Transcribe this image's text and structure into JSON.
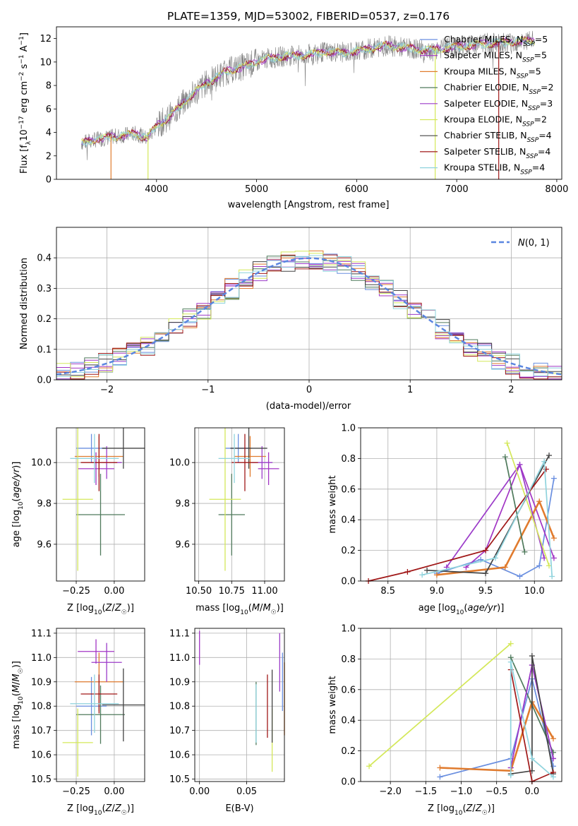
{
  "title": "PLATE=1359, MJD=53002, FIBERID=0537, z=0.176",
  "chart_data": [
    {
      "id": "spectrum",
      "type": "line",
      "xlabel": "wavelength [Angstrom, rest frame]",
      "ylabel": "Flux [f_λ 10^-17 erg cm^-2 s^-1 A^-1]",
      "xlim": [
        3000,
        8050
      ],
      "ylim": [
        0,
        13
      ],
      "xticks": [
        4000,
        5000,
        6000,
        7000,
        8000
      ],
      "yticks": [
        0,
        2,
        4,
        6,
        8,
        10,
        12
      ],
      "grid": false,
      "legend_position": "top-right",
      "data_profile": {
        "x": [
          3250,
          3400,
          3550,
          3700,
          3800,
          3900,
          4000,
          4150,
          4300,
          4500,
          4700,
          4900,
          5100,
          5300,
          5500,
          5700,
          5900,
          6100,
          6300,
          6500,
          6700,
          6900,
          7100,
          7300,
          7500,
          7700
        ],
        "y": [
          3.1,
          3.4,
          3.6,
          3.8,
          3.9,
          3.5,
          4.5,
          5.5,
          6.8,
          8.2,
          9.2,
          9.7,
          10.3,
          10.5,
          10.6,
          10.9,
          10.8,
          11.1,
          11.4,
          11.2,
          11.0,
          11.2,
          11.4,
          11.6,
          11.7,
          11.8
        ]
      },
      "series": [
        {
          "name": "Chabrier MILES, N_SSP=5",
          "color": "#6a8fe0"
        },
        {
          "name": "Salpeter MILES, N_SSP=5",
          "color": "#a235c4"
        },
        {
          "name": "Kroupa MILES, N_SSP=5",
          "color": "#e07b2e"
        },
        {
          "name": "Chabrier ELODIE, N_SSP=2",
          "color": "#4f7a5c"
        },
        {
          "name": "Salpeter ELODIE, N_SSP=3",
          "color": "#9b3bc9"
        },
        {
          "name": "Kroupa ELODIE, N_SSP=2",
          "color": "#d4e85a"
        },
        {
          "name": "Chabrier STELIB, N_SSP=4",
          "color": "#444444"
        },
        {
          "name": "Salpeter STELIB, N_SSP=4",
          "color": "#a01818"
        },
        {
          "name": "Kroupa STELIB, N_SSP=4",
          "color": "#8fd3dd"
        }
      ]
    },
    {
      "id": "residuals",
      "type": "bar",
      "xlabel": "(data-model)/error",
      "ylabel": "Normed distribution",
      "xlim": [
        -2.5,
        2.5
      ],
      "ylim": [
        0,
        0.5
      ],
      "xticks": [
        -2,
        -1,
        0,
        1,
        2
      ],
      "yticks": [
        0.0,
        0.1,
        0.2,
        0.3,
        0.4
      ],
      "grid": true,
      "legend_position": "top-right",
      "legend": "N(0,1)",
      "gaussian_color": "#5b86e0"
    },
    {
      "id": "age-vs-z",
      "type": "scatter",
      "xlabel": "Z [log10(Z/Z☉)]",
      "ylabel": "age  [log10(age/yr)]",
      "xlim": [
        -0.38,
        0.2
      ],
      "ylim": [
        9.42,
        10.17
      ],
      "xticks": [
        -0.25,
        0.0
      ],
      "yticks": [
        9.6,
        9.8,
        10.0
      ],
      "grid": true,
      "points": [
        {
          "x": -0.15,
          "y": 10.07,
          "xerr": 0.1,
          "yerr": 0.07,
          "series": 0
        },
        {
          "x": -0.12,
          "y": 9.97,
          "xerr": 0.12,
          "yerr": 0.08,
          "series": 1
        },
        {
          "x": -0.1,
          "y": 10.03,
          "xerr": 0.16,
          "yerr": 0.1,
          "series": 2
        },
        {
          "x": -0.09,
          "y": 9.745,
          "xerr": 0.16,
          "yerr": 0.2,
          "series": 3
        },
        {
          "x": -0.05,
          "y": 10.0,
          "xerr": 0.1,
          "yerr": 0.08,
          "series": 4
        },
        {
          "x": -0.24,
          "y": 9.82,
          "xerr": 0.1,
          "yerr": 0.35,
          "series": 5
        },
        {
          "x": 0.06,
          "y": 10.07,
          "xerr": 0.14,
          "yerr": 0.1,
          "series": 6
        },
        {
          "x": -0.1,
          "y": 10.0,
          "xerr": 0.12,
          "yerr": 0.14,
          "series": 7
        },
        {
          "x": -0.13,
          "y": 10.02,
          "xerr": 0.16,
          "yerr": 0.12,
          "series": 8
        }
      ]
    },
    {
      "id": "age-vs-mass",
      "type": "scatter",
      "xlabel": "mass [log10(M/M☉)]",
      "ylabel": "",
      "xlim": [
        10.47,
        11.15
      ],
      "ylim": [
        9.42,
        10.17
      ],
      "xticks": [
        10.5,
        10.75,
        11.0
      ],
      "yticks": [
        9.6,
        9.8,
        10.0
      ],
      "grid": true,
      "points": [
        {
          "x": 10.8,
          "y": 10.07,
          "xerr": 0.1,
          "yerr": 0.07,
          "series": 0
        },
        {
          "x": 11.03,
          "y": 9.97,
          "xerr": 0.08,
          "yerr": 0.08,
          "series": 1
        },
        {
          "x": 10.89,
          "y": 10.03,
          "xerr": 0.12,
          "yerr": 0.1,
          "series": 2
        },
        {
          "x": 10.75,
          "y": 9.745,
          "xerr": 0.1,
          "yerr": 0.2,
          "series": 3
        },
        {
          "x": 10.98,
          "y": 10.0,
          "xerr": 0.08,
          "yerr": 0.08,
          "series": 4
        },
        {
          "x": 10.7,
          "y": 9.82,
          "xerr": 0.12,
          "yerr": 0.35,
          "series": 5
        },
        {
          "x": 10.88,
          "y": 10.07,
          "xerr": 0.14,
          "yerr": 0.1,
          "series": 6
        },
        {
          "x": 10.85,
          "y": 10.0,
          "xerr": 0.1,
          "yerr": 0.14,
          "series": 7
        },
        {
          "x": 10.77,
          "y": 10.02,
          "xerr": 0.12,
          "yerr": 0.12,
          "series": 8
        }
      ]
    },
    {
      "id": "weight-vs-age",
      "type": "line",
      "xlabel": "age  [log10(age/yr)]",
      "ylabel": "mass weight",
      "xlim": [
        8.22,
        10.28
      ],
      "ylim": [
        0,
        1
      ],
      "xticks": [
        8.5,
        9.0,
        9.5,
        10.0
      ],
      "yticks": [
        0.0,
        0.2,
        0.4,
        0.6,
        0.8,
        1.0
      ],
      "grid": true,
      "lines": [
        {
          "series": 0,
          "x": [
            9.0,
            9.45,
            9.85,
            10.05,
            10.2
          ],
          "y": [
            0.05,
            0.14,
            0.03,
            0.1,
            0.67
          ]
        },
        {
          "series": 1,
          "x": [
            9.3,
            9.5,
            9.85,
            10.2
          ],
          "y": [
            0.09,
            0.2,
            0.76,
            0.15
          ]
        },
        {
          "series": 2,
          "x": [
            9.0,
            9.7,
            10.05,
            10.2
          ],
          "y": [
            0.04,
            0.09,
            0.52,
            0.28
          ]
        },
        {
          "series": 3,
          "x": [
            9.7,
            9.9
          ],
          "y": [
            0.81,
            0.19
          ]
        },
        {
          "series": 4,
          "x": [
            9.1,
            9.85,
            10.1
          ],
          "y": [
            0.09,
            0.76,
            0.15
          ]
        },
        {
          "series": 5,
          "x": [
            9.72,
            10.15
          ],
          "y": [
            0.9,
            0.1
          ]
        },
        {
          "series": 6,
          "x": [
            8.9,
            9.5,
            10.15
          ],
          "y": [
            0.07,
            0.05,
            0.82
          ]
        },
        {
          "series": 7,
          "x": [
            8.3,
            8.7,
            9.5,
            10.12
          ],
          "y": [
            0.0,
            0.06,
            0.2,
            0.73
          ]
        },
        {
          "series": 8,
          "x": [
            8.85,
            9.6,
            10.1,
            10.18
          ],
          "y": [
            0.04,
            0.15,
            0.78,
            0.03
          ]
        }
      ]
    },
    {
      "id": "mass-vs-z",
      "type": "scatter",
      "xlabel": "Z [log10(Z/Z☉)]",
      "ylabel": "mass [log10(M/M☉)]",
      "xlim": [
        -0.38,
        0.2
      ],
      "ylim": [
        10.49,
        11.12
      ],
      "xticks": [
        -0.25,
        0.0
      ],
      "yticks": [
        10.5,
        10.6,
        10.7,
        10.8,
        10.9,
        11.0,
        11.1
      ],
      "grid": true,
      "points": [
        {
          "x": -0.15,
          "y": 10.8,
          "xerr": 0.1,
          "yerr": 0.12,
          "series": 0
        },
        {
          "x": -0.12,
          "y": 11.025,
          "xerr": 0.12,
          "yerr": 0.05,
          "series": 1
        },
        {
          "x": -0.1,
          "y": 10.9,
          "xerr": 0.16,
          "yerr": 0.12,
          "series": 2
        },
        {
          "x": -0.09,
          "y": 10.765,
          "xerr": 0.16,
          "yerr": 0.12,
          "series": 3
        },
        {
          "x": -0.05,
          "y": 10.98,
          "xerr": 0.1,
          "yerr": 0.08,
          "series": 4
        },
        {
          "x": -0.24,
          "y": 10.65,
          "xerr": 0.1,
          "yerr": 0.14,
          "series": 5
        },
        {
          "x": 0.06,
          "y": 10.805,
          "xerr": 0.14,
          "yerr": 0.15,
          "series": 6
        },
        {
          "x": -0.1,
          "y": 10.85,
          "xerr": 0.12,
          "yerr": 0.08,
          "series": 7
        },
        {
          "x": -0.13,
          "y": 10.81,
          "xerr": 0.16,
          "yerr": 0.12,
          "series": 8
        }
      ]
    },
    {
      "id": "mass-vs-ebv",
      "type": "scatter",
      "xlabel": "E(B-V)",
      "ylabel": "",
      "xlim": [
        -0.005,
        0.09
      ],
      "ylim": [
        10.49,
        11.12
      ],
      "xticks": [
        0.0,
        0.05
      ],
      "yticks": [
        10.5,
        10.6,
        10.7,
        10.8,
        10.9,
        11.0,
        11.1
      ],
      "grid": true,
      "points": [
        {
          "x": 0.088,
          "y": 10.9,
          "yerr": 0.12,
          "series": 0
        },
        {
          "x": 0.0,
          "y": 11.04,
          "yerr": 0.07,
          "series": 1
        },
        {
          "x": 0.09,
          "y": 10.83,
          "yerr": 0.15,
          "series": 2
        },
        {
          "x": 0.06,
          "y": 10.77,
          "yerr": 0.13,
          "series": 3
        },
        {
          "x": 0.085,
          "y": 10.98,
          "yerr": 0.12,
          "series": 4
        },
        {
          "x": 0.077,
          "y": 10.66,
          "yerr": 0.13,
          "series": 5
        },
        {
          "x": 0.077,
          "y": 10.8,
          "yerr": 0.15,
          "series": 6
        },
        {
          "x": 0.072,
          "y": 10.8,
          "yerr": 0.13,
          "series": 7
        },
        {
          "x": 0.06,
          "y": 10.77,
          "yerr": 0.12,
          "series": 8
        }
      ]
    },
    {
      "id": "weight-vs-z",
      "type": "line",
      "xlabel": "Z [log10(Z/Z☉)]",
      "ylabel": "mass weight",
      "xlim": [
        -2.42,
        0.42
      ],
      "ylim": [
        0,
        1
      ],
      "xticks": [
        -2.0,
        -1.5,
        -1.0,
        -0.5,
        0.0
      ],
      "yticks": [
        0.0,
        0.2,
        0.4,
        0.6,
        0.8,
        1.0
      ],
      "grid": true,
      "lines": [
        {
          "series": 0,
          "x": [
            -1.3,
            -0.3,
            0.0,
            0.3
          ],
          "y": [
            0.03,
            0.15,
            0.67,
            0.1
          ]
        },
        {
          "series": 1,
          "x": [
            -0.3,
            0.0,
            0.3
          ],
          "y": [
            0.09,
            0.76,
            0.15
          ]
        },
        {
          "series": 2,
          "x": [
            -1.3,
            -0.3,
            0.0,
            0.3
          ],
          "y": [
            0.09,
            0.07,
            0.52,
            0.28
          ]
        },
        {
          "series": 3,
          "x": [
            -0.3,
            0.3
          ],
          "y": [
            0.81,
            0.19
          ]
        },
        {
          "series": 4,
          "x": [
            -0.3,
            0.0,
            0.3
          ],
          "y": [
            0.09,
            0.76,
            0.15
          ]
        },
        {
          "series": 5,
          "x": [
            -2.3,
            -0.3
          ],
          "y": [
            0.1,
            0.9
          ]
        },
        {
          "series": 6,
          "x": [
            -0.3,
            0.0,
            0.0,
            0.3
          ],
          "y": [
            0.05,
            0.07,
            0.82,
            0.05
          ]
        },
        {
          "series": 7,
          "x": [
            -0.3,
            0.0,
            0.3
          ],
          "y": [
            0.73,
            0.0,
            0.06
          ]
        },
        {
          "series": 8,
          "x": [
            -0.3,
            -0.3,
            0.0,
            0.3
          ],
          "y": [
            0.04,
            0.78,
            0.15,
            0.03
          ]
        }
      ]
    }
  ]
}
